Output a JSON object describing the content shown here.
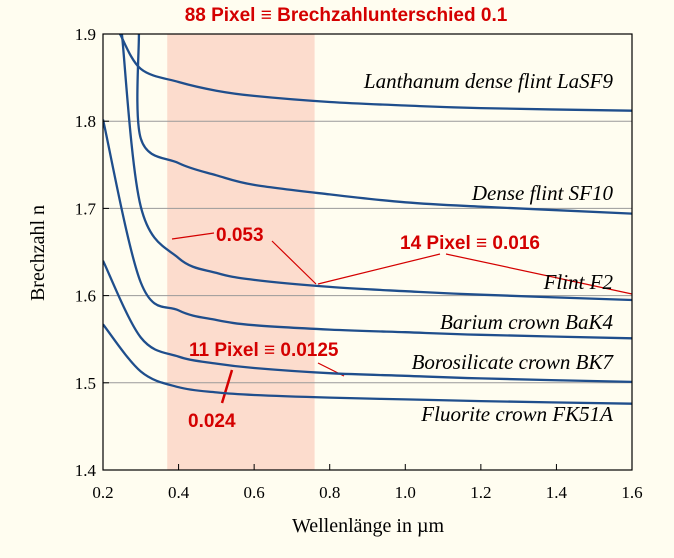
{
  "chart_data": {
    "type": "line",
    "title": "88 Pixel ≡ Brechzahlunterschied 0.1",
    "xlabel": "Wellenlänge in µm",
    "ylabel": "Brechzahl n",
    "xlim": [
      0.2,
      1.6
    ],
    "ylim": [
      1.4,
      1.9
    ],
    "x_ticks": [
      "0.2",
      "0.4",
      "0.6",
      "0.8",
      "1.0",
      "1.2",
      "1.4",
      "1.6"
    ],
    "y_ticks": [
      "1.4",
      "1.5",
      "1.6",
      "1.7",
      "1.8",
      "1.9"
    ],
    "grid": "horizontal",
    "highlight_band": {
      "x": [
        0.37,
        0.76
      ],
      "color": "#fcdccd"
    },
    "line_color": "#1f4e8c",
    "annotation_color": "#d40000",
    "series": [
      {
        "name": "Lanthanum dense flint LaSF9",
        "x": [
          0.245,
          0.3,
          0.4,
          0.5,
          0.6,
          0.8,
          1.0,
          1.2,
          1.6
        ],
        "y": [
          1.9,
          1.86,
          1.845,
          1.835,
          1.829,
          1.822,
          1.818,
          1.815,
          1.812
        ]
      },
      {
        "name": "Dense flint SF10",
        "x": [
          0.295,
          0.3,
          0.4,
          0.5,
          0.6,
          0.8,
          1.0,
          1.2,
          1.6
        ],
        "y": [
          1.9,
          1.78,
          1.752,
          1.738,
          1.727,
          1.716,
          1.707,
          1.702,
          1.694
        ]
      },
      {
        "name": "Flint F2",
        "x": [
          0.25,
          0.3,
          0.4,
          0.5,
          0.6,
          0.8,
          1.0,
          1.2,
          1.6
        ],
        "y": [
          1.9,
          1.702,
          1.643,
          1.626,
          1.618,
          1.61,
          1.605,
          1.601,
          1.595
        ]
      },
      {
        "name": "Barium crown BaK4",
        "x": [
          0.2,
          0.3,
          0.4,
          0.5,
          0.6,
          0.8,
          1.0,
          1.2,
          1.6
        ],
        "y": [
          1.802,
          1.615,
          1.583,
          1.572,
          1.566,
          1.561,
          1.558,
          1.555,
          1.551
        ]
      },
      {
        "name": "Borosilicate crown BK7",
        "x": [
          0.2,
          0.3,
          0.4,
          0.5,
          0.6,
          0.8,
          1.0,
          1.2,
          1.6
        ],
        "y": [
          1.64,
          1.552,
          1.53,
          1.522,
          1.517,
          1.511,
          1.508,
          1.505,
          1.501
        ]
      },
      {
        "name": "Fluorite crown FK51A",
        "x": [
          0.2,
          0.3,
          0.4,
          0.5,
          0.6,
          0.8,
          1.0,
          1.2,
          1.6
        ],
        "y": [
          1.567,
          1.513,
          1.495,
          1.489,
          1.486,
          1.483,
          1.481,
          1.479,
          1.476
        ]
      }
    ],
    "annotations": [
      {
        "text": "0.053"
      },
      {
        "text": "14 Pixel ≡ 0.016"
      },
      {
        "text": "11 Pixel ≡ 0.0125"
      },
      {
        "text": "0.024"
      }
    ]
  }
}
